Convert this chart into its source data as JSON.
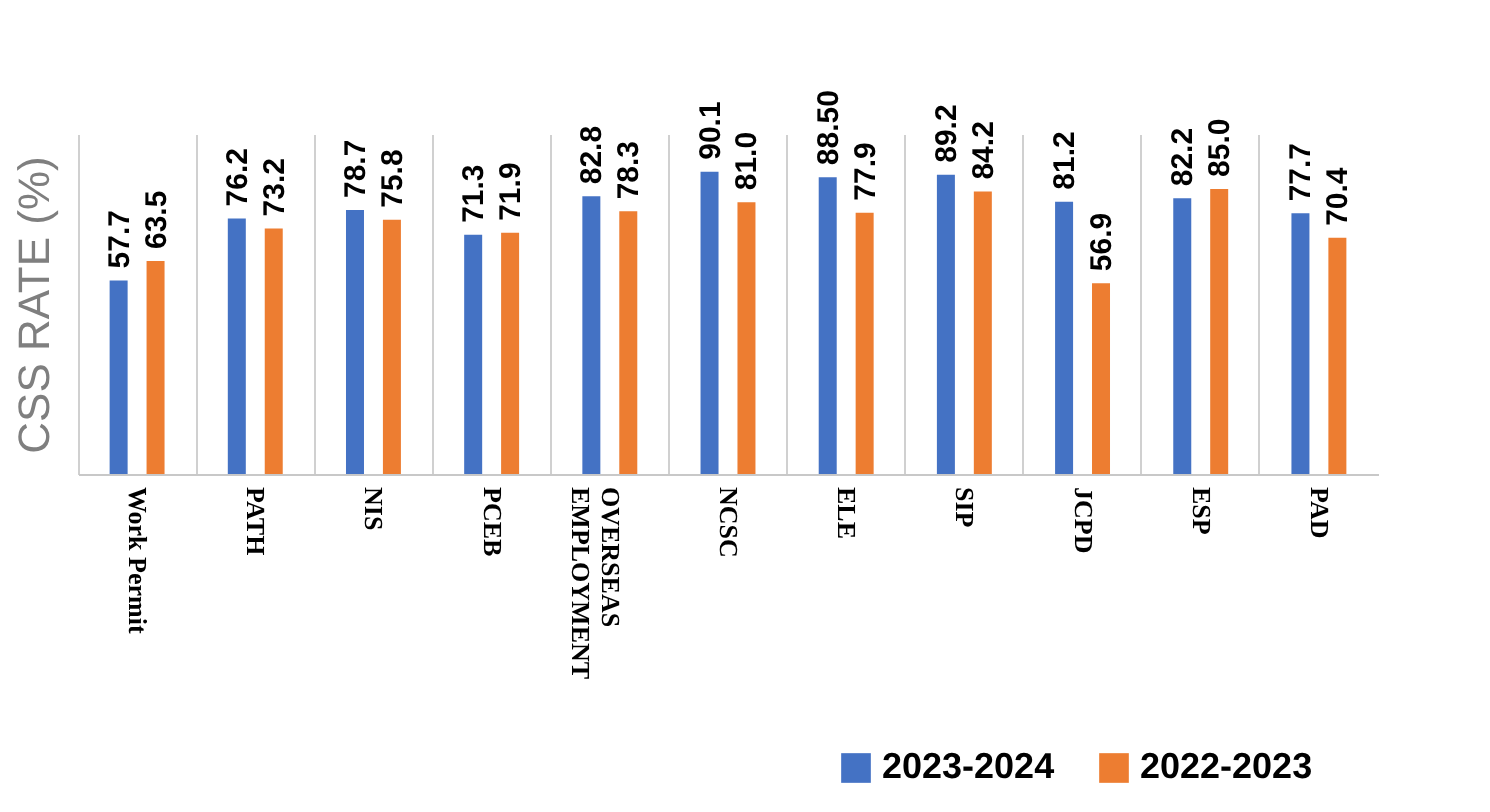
{
  "chart_data": {
    "type": "bar",
    "ylabel": "CSS RATE (%)",
    "categories": [
      "Work Permit",
      "PATH",
      "NIS",
      "PCEB",
      "OVERSEAS\nEMPLOYMENT",
      "NCSC",
      "ELE",
      "SIP",
      "JCPD",
      "ESP",
      "PAD"
    ],
    "series": [
      {
        "name": "2023-2024",
        "color": "#4472c4",
        "values": [
          57.7,
          76.2,
          78.7,
          71.3,
          82.8,
          90.1,
          88.5,
          89.2,
          81.2,
          82.2,
          77.7
        ],
        "value_labels": [
          "57.7",
          "76.2",
          "78.7",
          "71.3",
          "82.8",
          "90.1",
          "88.50",
          "89.2",
          "81.2",
          "82.2",
          "77.7"
        ]
      },
      {
        "name": "2022-2023",
        "color": "#ed7d31",
        "values": [
          63.5,
          73.2,
          75.8,
          71.9,
          78.3,
          81.0,
          77.9,
          84.2,
          56.9,
          85.0,
          70.4
        ],
        "value_labels": [
          "63.5",
          "73.2",
          "75.8",
          "71.9",
          "78.3",
          "81.0",
          "77.9",
          "84.2",
          "56.9",
          "85.0",
          "70.4"
        ]
      }
    ],
    "grid": "x",
    "legend": "bottom right"
  }
}
